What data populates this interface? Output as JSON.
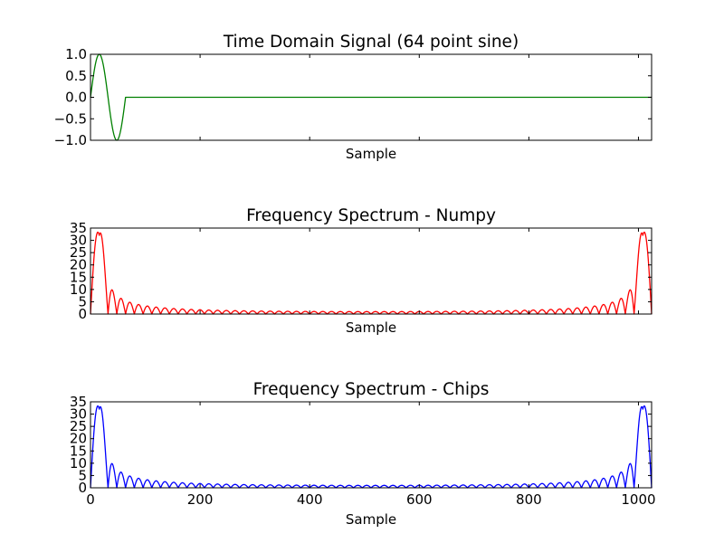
{
  "chart_data": [
    {
      "type": "line",
      "title": "Time Domain Signal (64 point sine)",
      "xlabel": "Sample",
      "ylabel": "",
      "xlim": [
        0,
        1024
      ],
      "ylim": [
        -1.0,
        1.0
      ],
      "y_ticks": [
        -1.0,
        -0.5,
        0.0,
        0.5,
        1.0
      ],
      "y_tick_labels": [
        "−1.0",
        "−0.5",
        "0.0",
        "0.5",
        "1.0"
      ],
      "x_ticks": [
        0,
        200,
        400,
        600,
        800,
        1000
      ],
      "x_tick_labels": [],
      "grid": false,
      "series": [
        {
          "color": "#008000",
          "description_formula": "sin(2*pi*n/64) for n<64, else 0",
          "x": [
            0,
            8,
            16,
            24,
            32,
            40,
            48,
            56,
            64,
            128,
            256,
            512,
            768,
            1024
          ],
          "y": [
            0.0,
            0.707,
            1.0,
            0.707,
            0.0,
            -0.707,
            -1.0,
            -0.707,
            0.0,
            0.0,
            0.0,
            0.0,
            0.0,
            0.0
          ]
        }
      ]
    },
    {
      "type": "line",
      "title": "Frequency Spectrum - Numpy",
      "xlabel": "Sample",
      "ylabel": "",
      "xlim": [
        0,
        1024
      ],
      "ylim": [
        0,
        35
      ],
      "y_ticks": [
        0,
        5,
        10,
        15,
        20,
        25,
        30,
        35
      ],
      "y_tick_labels": [
        "0",
        "5",
        "10",
        "15",
        "20",
        "25",
        "30",
        "35"
      ],
      "x_ticks": [
        0,
        200,
        400,
        600,
        800,
        1000
      ],
      "x_tick_labels": [],
      "grid": false,
      "series": [
        {
          "color": "#ff0000",
          "peaks": [
            {
              "x": 16,
              "y": 32
            },
            {
              "x": 1008,
              "y": 32
            }
          ],
          "sidelobes": [
            {
              "x": 40,
              "y": 4.0
            },
            {
              "x": 56,
              "y": 1.8
            },
            {
              "x": 984,
              "y": 4.0
            },
            {
              "x": 968,
              "y": 1.8
            }
          ]
        }
      ]
    },
    {
      "type": "line",
      "title": "Frequency Spectrum - Chips",
      "xlabel": "Sample",
      "ylabel": "",
      "xlim": [
        0,
        1024
      ],
      "ylim": [
        0,
        35
      ],
      "y_ticks": [
        0,
        5,
        10,
        15,
        20,
        25,
        30,
        35
      ],
      "y_tick_labels": [
        "0",
        "5",
        "10",
        "15",
        "20",
        "25",
        "30",
        "35"
      ],
      "x_ticks": [
        0,
        200,
        400,
        600,
        800,
        1000
      ],
      "x_tick_labels": [
        "0",
        "200",
        "400",
        "600",
        "800",
        "1000"
      ],
      "grid": false,
      "series": [
        {
          "color": "#0000ff",
          "peaks": [
            {
              "x": 16,
              "y": 32
            },
            {
              "x": 1008,
              "y": 32
            }
          ],
          "sidelobes": [
            {
              "x": 40,
              "y": 4.0
            },
            {
              "x": 56,
              "y": 1.8
            },
            {
              "x": 984,
              "y": 4.0
            },
            {
              "x": 968,
              "y": 1.8
            }
          ]
        }
      ]
    }
  ]
}
